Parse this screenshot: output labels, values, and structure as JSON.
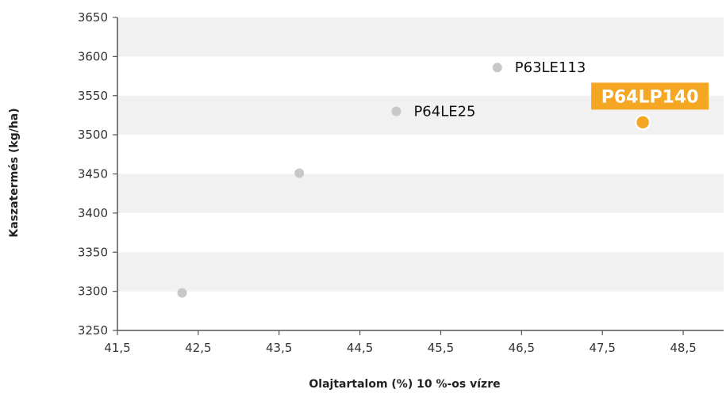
{
  "chart_data": {
    "type": "scatter",
    "xlabel": "Olajtartalom (%) 10 %-os vízre",
    "ylabel": "Kaszatermés (kg/ha)",
    "xlim": [
      41.5,
      49.0
    ],
    "ylim": [
      3250,
      3650
    ],
    "x_ticks": [
      41.5,
      42.5,
      43.5,
      44.5,
      45.5,
      46.5,
      47.5,
      48.5
    ],
    "x_tick_labels": [
      "41,5",
      "42,5",
      "43,5",
      "44,5",
      "45,5",
      "46,5",
      "47,5",
      "48,5"
    ],
    "y_ticks": [
      3250,
      3300,
      3350,
      3400,
      3450,
      3500,
      3550,
      3600,
      3650
    ],
    "y_tick_labels": [
      "3250",
      "3300",
      "3350",
      "3400",
      "3450",
      "3500",
      "3550",
      "3600",
      "3650"
    ],
    "grid": "alternating horizontal bands",
    "points": [
      {
        "x": 42.3,
        "y": 3298,
        "label": "",
        "highlight": false
      },
      {
        "x": 43.75,
        "y": 3451,
        "label": "",
        "highlight": false
      },
      {
        "x": 44.95,
        "y": 3530,
        "label": "P64LE25",
        "highlight": false
      },
      {
        "x": 46.2,
        "y": 3586,
        "label": "P63LE113",
        "highlight": false
      },
      {
        "x": 48.0,
        "y": 3516,
        "label": "P64LP140",
        "highlight": true
      }
    ],
    "colors": {
      "point": "#c8c8c8",
      "highlight": "#f5a623",
      "band": "#f1f1f1",
      "axis": "#555555"
    }
  }
}
